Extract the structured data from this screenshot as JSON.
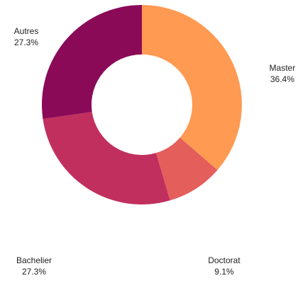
{
  "chart_data": {
    "type": "donut",
    "categories": [
      "Master",
      "Doctorat",
      "Bachelier",
      "Autres"
    ],
    "values": [
      36.4,
      9.1,
      27.3,
      27.3
    ],
    "value_labels": [
      "36.4%",
      "9.1%",
      "27.3%",
      "27.3%"
    ],
    "colors": [
      "#ff9a52",
      "#e45e5c",
      "#c12f5e",
      "#8a0a58"
    ]
  }
}
